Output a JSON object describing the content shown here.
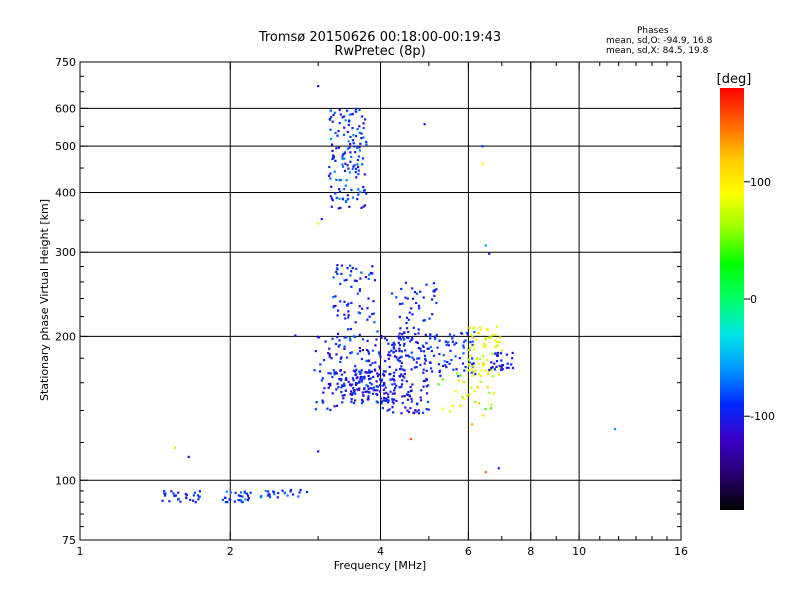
{
  "chart_data": {
    "type": "scatter",
    "title": "Tromsø 20150626 00:18:00-00:19:43",
    "subtitle": "RwPretec (8p)",
    "xlabel": "Frequency [MHz]",
    "ylabel": "Stationary phase Virtual Height [km]",
    "x_scale": "log",
    "y_scale": "log",
    "xlim": [
      1,
      16
    ],
    "ylim": [
      75,
      750
    ],
    "x_ticks": [
      1,
      2,
      4,
      6,
      8,
      10,
      16
    ],
    "x_gridlines": [
      2,
      4,
      6,
      8,
      10
    ],
    "y_ticks": [
      75,
      100,
      200,
      300,
      400,
      500,
      600,
      750
    ],
    "y_gridlines": [
      100,
      200,
      300,
      400,
      500,
      600
    ],
    "grid": true,
    "info": {
      "heading": "Phases",
      "line_o": "mean, sd,O: -94.9, 16.8",
      "line_x": "mean, sd,X:  84.5, 19.8"
    },
    "colorbar": {
      "label": "[deg]",
      "range": [
        -180,
        180
      ],
      "ticks": [
        -100,
        0,
        100
      ],
      "colors": [
        "#000000",
        "#2a006e",
        "#3c00c8",
        "#0028ff",
        "#0096ff",
        "#00e6e6",
        "#00ff64",
        "#00ff00",
        "#96ff00",
        "#ffff00",
        "#ffc800",
        "#ff6400",
        "#ff0000"
      ]
    },
    "clusters": [
      {
        "x": [
          1.45,
          1.75
        ],
        "y": [
          90,
          95
        ],
        "n": 28,
        "phase": [
          -110,
          -80
        ]
      },
      {
        "x": [
          1.9,
          2.2
        ],
        "y": [
          89,
          95
        ],
        "n": 28,
        "phase": [
          -110,
          -60
        ]
      },
      {
        "x": [
          2.3,
          2.85
        ],
        "y": [
          92,
          96
        ],
        "n": 24,
        "phase": [
          -110,
          -60
        ]
      },
      {
        "x": [
          3.15,
          3.75
        ],
        "y": [
          370,
          600
        ],
        "n": 150,
        "phase": [
          -120,
          -60
        ]
      },
      {
        "x": [
          3.2,
          3.9
        ],
        "y": [
          150,
          285
        ],
        "n": 140,
        "phase": [
          -120,
          -70
        ]
      },
      {
        "x": [
          2.95,
          3.3
        ],
        "y": [
          140,
          200
        ],
        "n": 40,
        "phase": [
          -120,
          -80
        ]
      },
      {
        "x": [
          3.3,
          4.3
        ],
        "y": [
          145,
          170
        ],
        "n": 120,
        "phase": [
          -120,
          -80
        ]
      },
      {
        "x": [
          3.9,
          5.0
        ],
        "y": [
          138,
          205
        ],
        "n": 160,
        "phase": [
          -120,
          -80
        ]
      },
      {
        "x": [
          4.2,
          5.2
        ],
        "y": [
          170,
          260
        ],
        "n": 70,
        "phase": [
          -110,
          -80
        ]
      },
      {
        "x": [
          5.0,
          6.2
        ],
        "y": [
          165,
          205
        ],
        "n": 70,
        "phase": [
          -110,
          -70
        ]
      },
      {
        "x": [
          6.0,
          7.0
        ],
        "y": [
          165,
          210
        ],
        "n": 70,
        "phase": [
          60,
          110
        ]
      },
      {
        "x": [
          6.6,
          7.4
        ],
        "y": [
          170,
          185
        ],
        "n": 30,
        "phase": [
          -110,
          -90
        ]
      },
      {
        "x": [
          5.2,
          6.8
        ],
        "y": [
          135,
          170
        ],
        "n": 30,
        "phase": [
          40,
          120
        ]
      }
    ],
    "isolated_points": [
      {
        "x": 3.0,
        "y": 668,
        "phase": -100
      },
      {
        "x": 4.9,
        "y": 556,
        "phase": -100
      },
      {
        "x": 3.0,
        "y": 345,
        "phase": 100
      },
      {
        "x": 3.05,
        "y": 352,
        "phase": -100
      },
      {
        "x": 3.0,
        "y": 115,
        "phase": -100
      },
      {
        "x": 2.7,
        "y": 201,
        "phase": -100
      },
      {
        "x": 6.4,
        "y": 460,
        "phase": 100
      },
      {
        "x": 6.4,
        "y": 500,
        "phase": -90
      },
      {
        "x": 6.5,
        "y": 310,
        "phase": -60
      },
      {
        "x": 6.6,
        "y": 298,
        "phase": -100
      },
      {
        "x": 1.55,
        "y": 117,
        "phase": 110
      },
      {
        "x": 1.65,
        "y": 112,
        "phase": -100
      },
      {
        "x": 11.8,
        "y": 128,
        "phase": -60
      },
      {
        "x": 6.9,
        "y": 106,
        "phase": -100
      },
      {
        "x": 6.5,
        "y": 104,
        "phase": 150
      },
      {
        "x": 6.1,
        "y": 131,
        "phase": 130
      },
      {
        "x": 6.3,
        "y": 145,
        "phase": 120
      },
      {
        "x": 4.6,
        "y": 122,
        "phase": 150
      },
      {
        "x": 3.5,
        "y": 148,
        "phase": -90
      }
    ]
  }
}
